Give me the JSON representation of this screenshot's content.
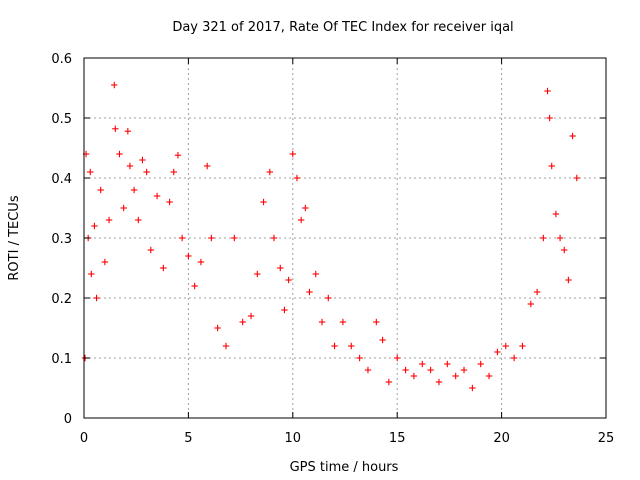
{
  "chart_data": {
    "type": "scatter",
    "title": "Day 321 of 2017, Rate Of TEC Index for receiver iqal",
    "xlabel": "GPS time / hours",
    "ylabel": "ROTI / TECUs",
    "xlim": [
      0,
      25
    ],
    "ylim": [
      0,
      0.6
    ],
    "x_ticks": [
      0,
      5,
      10,
      15,
      20,
      25
    ],
    "x_tick_labels": [
      "0",
      "5",
      "10",
      "15",
      "20",
      "25"
    ],
    "y_ticks": [
      0,
      0.1,
      0.2,
      0.3,
      0.4,
      0.5,
      0.6
    ],
    "y_tick_labels": [
      "0",
      "0.1",
      "0.2",
      "0.3",
      "0.4",
      "0.5",
      "0.6"
    ],
    "grid": true,
    "marker": "+",
    "colors": {
      "points": "#ff0000",
      "grid": "#a0a0a0",
      "frame": "#000000"
    },
    "series": [
      {
        "x": [
          0.05,
          0.1,
          0.2,
          0.3,
          0.35,
          0.5,
          0.6,
          0.8,
          1.0,
          1.2,
          1.45,
          1.5,
          1.7,
          1.9,
          2.1,
          2.2,
          2.4,
          2.6,
          2.8,
          3.0,
          3.2,
          3.5,
          3.8,
          4.1,
          4.3,
          4.5,
          4.7,
          5.0,
          5.3,
          5.6,
          5.9,
          6.1,
          6.4,
          6.8,
          7.2,
          7.6,
          8.0,
          8.3,
          8.6,
          8.9,
          9.1,
          9.4,
          9.6,
          9.8,
          10.0,
          10.2,
          10.4,
          10.6,
          10.8,
          11.1,
          11.4,
          11.7,
          12.0,
          12.4,
          12.8,
          13.2,
          13.6,
          14.0,
          14.3,
          14.6,
          15.0,
          15.4,
          15.8,
          16.2,
          16.6,
          17.0,
          17.4,
          17.8,
          18.2,
          18.6,
          19.0,
          19.4,
          19.8,
          20.2,
          20.6,
          21.0,
          21.4,
          21.7,
          22.0,
          22.2,
          22.3,
          22.4,
          22.6,
          22.8,
          23.0,
          23.2,
          23.4,
          23.6
        ],
        "y": [
          0.1,
          0.44,
          0.3,
          0.41,
          0.24,
          0.32,
          0.2,
          0.38,
          0.26,
          0.33,
          0.555,
          0.482,
          0.44,
          0.35,
          0.478,
          0.42,
          0.38,
          0.33,
          0.43,
          0.41,
          0.28,
          0.37,
          0.25,
          0.36,
          0.41,
          0.438,
          0.3,
          0.27,
          0.22,
          0.26,
          0.42,
          0.3,
          0.15,
          0.12,
          0.3,
          0.16,
          0.17,
          0.24,
          0.36,
          0.41,
          0.3,
          0.25,
          0.18,
          0.23,
          0.44,
          0.4,
          0.33,
          0.35,
          0.21,
          0.24,
          0.16,
          0.2,
          0.12,
          0.16,
          0.12,
          0.1,
          0.08,
          0.16,
          0.13,
          0.06,
          0.1,
          0.08,
          0.07,
          0.09,
          0.08,
          0.06,
          0.09,
          0.07,
          0.08,
          0.05,
          0.09,
          0.07,
          0.11,
          0.12,
          0.1,
          0.12,
          0.19,
          0.21,
          0.3,
          0.545,
          0.5,
          0.42,
          0.34,
          0.3,
          0.28,
          0.23,
          0.47,
          0.4
        ]
      }
    ]
  }
}
